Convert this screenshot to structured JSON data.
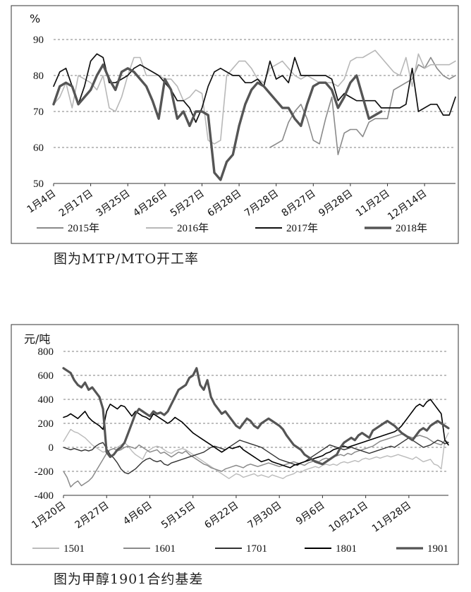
{
  "captions": [
    "图为MTP/MTO开工率",
    "图为甲醇1901合约基差"
  ],
  "chart_data": [
    {
      "type": "line",
      "title": "",
      "ylabel": "%",
      "ylim": [
        50,
        90
      ],
      "yticks": [
        50,
        60,
        70,
        80,
        90
      ],
      "grid": true,
      "legend": "bottom",
      "x_labels": [
        "1月4日",
        "2月17日",
        "3月25日",
        "4月26日",
        "5月27日",
        "6月28日",
        "7月28日",
        "8月27日",
        "9月28日",
        "11月2日",
        "12月14日"
      ],
      "x_label_positions": [
        0,
        6,
        12,
        18,
        24,
        30,
        36,
        42,
        48,
        54,
        60
      ],
      "n_points": 66,
      "series": [
        {
          "name": "2015年",
          "color": "#8a8a8a",
          "width": 1.6,
          "segments": [
            {
              "start": 35,
              "values": [
                60,
                61,
                62,
                67,
                70,
                72,
                68,
                62,
                61,
                68,
                74,
                58,
                64,
                65,
                65,
                63,
                67,
                68,
                68,
                68,
                76,
                77,
                78,
                79,
                83,
                82,
                85,
                82,
                80,
                79,
                80
              ]
            }
          ]
        },
        {
          "name": "2016年",
          "color": "#b8b8b8",
          "width": 1.6,
          "segments": [
            {
              "start": 0,
              "values": [
                72,
                74,
                78,
                71,
                80,
                79,
                78,
                76,
                80,
                71,
                70,
                74,
                80,
                85,
                85,
                80,
                80,
                80,
                79,
                79,
                77,
                73,
                74,
                76,
                75,
                62,
                61,
                62,
                80,
                82,
                84,
                84,
                82,
                79,
                78,
                82,
                83,
                84,
                82,
                80,
                79,
                80,
                79,
                78,
                78,
                78,
                77,
                79,
                84,
                85,
                85,
                86,
                87,
                85,
                83,
                81,
                80,
                85,
                77,
                86,
                82,
                83,
                83,
                83,
                83,
                84
              ]
            }
          ]
        },
        {
          "name": "2017年",
          "color": "#111111",
          "width": 1.7,
          "segments": [
            {
              "start": 0,
              "values": [
                77,
                81,
                82,
                77,
                72,
                77,
                84,
                86,
                85,
                78,
                78,
                79,
                80,
                82,
                83,
                82,
                81,
                80,
                78,
                76,
                73,
                73,
                71,
                67,
                71,
                77,
                81,
                82,
                81,
                80,
                80,
                78,
                78,
                79,
                77,
                84,
                79,
                80,
                78,
                85,
                80,
                80,
                80,
                80,
                80,
                79,
                73,
                75,
                74,
                73,
                73,
                73,
                73,
                71,
                71,
                71,
                71,
                72,
                82,
                70,
                71,
                72,
                72,
                69,
                69,
                74
              ]
            }
          ]
        },
        {
          "name": "2018年",
          "color": "#555555",
          "width": 3.4,
          "segments": [
            {
              "start": 0,
              "values": [
                72,
                77,
                78,
                77,
                72,
                74,
                76,
                80,
                83,
                79,
                76,
                81,
                82,
                81,
                79,
                77,
                73,
                68,
                79,
                76,
                68,
                70,
                66,
                70,
                70,
                69,
                53,
                51,
                56,
                58,
                66,
                72,
                76,
                78,
                77,
                75,
                73,
                71,
                71,
                68,
                66,
                72,
                77,
                78,
                78,
                76,
                71,
                74,
                78,
                80,
                74,
                68,
                69,
                70
              ]
            }
          ]
        }
      ]
    },
    {
      "type": "line",
      "title": "",
      "ylabel": "元/吨",
      "ylim": [
        -400,
        800
      ],
      "yticks": [
        -400,
        -200,
        0,
        200,
        400,
        600,
        800
      ],
      "grid": true,
      "legend": "bottom",
      "x_labels": [
        "1月20日",
        "2月27日",
        "4月6日",
        "5月15日",
        "6月22日",
        "7月30日",
        "9月6日",
        "10月21日",
        "11月28日"
      ],
      "x_label_positions": [
        0,
        12,
        24,
        36,
        48,
        60,
        72,
        84,
        96
      ],
      "n_points": 108,
      "series": [
        {
          "name": "1501",
          "color": "#bbbbbb",
          "width": 1.4,
          "segments": [
            {
              "start": 0,
              "values": [
                50,
                100,
                150,
                130,
                120,
                100,
                80,
                50,
                20,
                0,
                -20,
                -40,
                -30,
                -20,
                -10,
                0,
                20,
                40,
                10,
                -30,
                -60,
                -80,
                -100,
                -40,
                -20,
                0,
                10,
                0,
                -20,
                -40,
                -50,
                -30,
                -20,
                -10,
                -20,
                -40,
                -60,
                -80,
                -100,
                -120,
                -140,
                -160,
                -180,
                -200,
                -220,
                -240,
                -260,
                -240,
                -220,
                -230,
                -250,
                -240,
                -230,
                -220,
                -240,
                -230,
                -240,
                -250,
                -230,
                -240,
                -250,
                -260,
                -240,
                -230,
                -220,
                -200,
                -210,
                -190,
                -180,
                -170,
                -160,
                -170,
                -150,
                -140,
                -150,
                -140,
                -150,
                -130,
                -120,
                -130,
                -120,
                -110,
                -120,
                -100,
                -90,
                -100,
                -90,
                -80,
                -90,
                -80,
                -70,
                -80,
                -70,
                -60,
                -70,
                -80,
                -90,
                -100,
                -80,
                -100,
                -120,
                -110,
                -100,
                -140,
                -150,
                -180,
                60,
                120
              ]
            }
          ]
        },
        {
          "name": "1601",
          "color": "#8a8a8a",
          "width": 1.5,
          "segments": [
            {
              "start": 0,
              "values": [
                -200,
                -250,
                -330,
                -300,
                -280,
                -320,
                -300,
                -280,
                -250,
                -200,
                -150,
                -100,
                -50,
                -20,
                -10,
                -30,
                -20,
                0,
                10,
                0,
                -10,
                20,
                0,
                -20,
                -40,
                -30,
                -20,
                -50,
                -40,
                -60,
                -80,
                -60,
                -40,
                -50,
                -30,
                -60,
                -80,
                -100,
                -120,
                -140,
                -150,
                -170,
                -180,
                -190,
                -200,
                -180,
                -170,
                -160,
                -150,
                -160,
                -170,
                -150,
                -140,
                -150,
                -160,
                -150,
                -140,
                -130,
                -140,
                -150,
                -160,
                -150,
                -140,
                -130,
                -120,
                -130,
                -140,
                -150,
                -130,
                -120,
                -110,
                -120,
                -100,
                -90,
                -100,
                -80,
                -70,
                -60,
                -70,
                -50,
                -60,
                -40,
                -30,
                -20,
                -10,
                0,
                10,
                30,
                50,
                60,
                70,
                80,
                90,
                100,
                110,
                100,
                90,
                80,
                90,
                100,
                90,
                80,
                60,
                40,
                30,
                20,
                60,
                40
              ]
            }
          ]
        },
        {
          "name": "1701",
          "color": "#333333",
          "width": 1.4,
          "segments": [
            {
              "start": 0,
              "values": [
                0,
                -10,
                -20,
                -10,
                -20,
                -30,
                -20,
                -30,
                -20,
                10,
                30,
                40,
                -10,
                -60,
                -90,
                -130,
                -180,
                -210,
                -220,
                -200,
                -180,
                -150,
                -120,
                -100,
                -90,
                -110,
                -120,
                -110,
                -140,
                -150,
                -130,
                -120,
                -110,
                -100,
                -90,
                -80,
                -70,
                -60,
                -50,
                -40,
                -20,
                0,
                10,
                0,
                -10,
                -20,
                0,
                20,
                40,
                60,
                50,
                40,
                30,
                20,
                10,
                0,
                -20,
                -40,
                -60,
                -80,
                -100,
                -110,
                -120,
                -130,
                -140,
                -150,
                -130,
                -120,
                -100,
                -80,
                -60,
                -40,
                -20,
                0,
                20,
                10,
                0,
                -10,
                -20,
                -10,
                0,
                -10,
                -20,
                -30,
                -40,
                -50,
                -40,
                -30,
                -20,
                -10,
                0,
                10,
                0,
                20,
                40,
                60,
                80,
                60,
                40,
                20,
                0,
                10,
                20,
                40,
                60,
                50,
                30,
                40
              ]
            }
          ]
        },
        {
          "name": "1801",
          "color": "#000000",
          "width": 1.6,
          "segments": [
            {
              "start": 0,
              "values": [
                250,
                260,
                280,
                260,
                240,
                270,
                300,
                250,
                220,
                200,
                180,
                150,
                300,
                360,
                340,
                320,
                350,
                340,
                300,
                260,
                300,
                280,
                260,
                250,
                230,
                280,
                260,
                240,
                220,
                200,
                220,
                250,
                230,
                210,
                180,
                150,
                120,
                100,
                80,
                60,
                40,
                20,
                0,
                -20,
                -40,
                -20,
                0,
                -10,
                0,
                10,
                -20,
                -40,
                -60,
                -80,
                -100,
                -120,
                -110,
                -100,
                -120,
                -130,
                -140,
                -150,
                -160,
                -170,
                -150,
                -140,
                -130,
                -120,
                -110,
                -100,
                -90,
                -80,
                -70,
                -50,
                -40,
                -20,
                -10,
                0,
                10,
                0,
                10,
                20,
                30,
                40,
                50,
                60,
                70,
                80,
                90,
                100,
                110,
                120,
                130,
                150,
                180,
                220,
                260,
                300,
                340,
                360,
                340,
                380,
                400,
                360,
                320,
                280,
                60,
                20
              ]
            }
          ]
        },
        {
          "name": "1901",
          "color": "#555555",
          "width": 3.2,
          "segments": [
            {
              "start": 0,
              "values": [
                660,
                640,
                620,
                560,
                520,
                500,
                540,
                480,
                500,
                460,
                420,
                320,
                -40,
                -80,
                -60,
                -20,
                0,
                40,
                120,
                200,
                280,
                320,
                300,
                280,
                260,
                300,
                280,
                290,
                270,
                300,
                360,
                420,
                480,
                500,
                520,
                580,
                600,
                660,
                520,
                480,
                560,
                420,
                360,
                320,
                280,
                300,
                260,
                220,
                180,
                160,
                200,
                240,
                220,
                180,
                160,
                200,
                220,
                240,
                220,
                200,
                180,
                150,
                100,
                60,
                20,
                0,
                -20,
                -60,
                -80,
                -100,
                -120,
                -130,
                -140,
                -120,
                -100,
                -80,
                -60,
                0,
                40,
                60,
                80,
                60,
                100,
                120,
                100,
                80,
                140,
                160,
                180,
                200,
                220,
                200,
                180,
                150,
                120,
                100,
                80,
                60,
                100,
                140,
                160,
                140,
                180,
                200,
                220,
                200,
                180,
                160
              ]
            }
          ]
        }
      ]
    }
  ]
}
